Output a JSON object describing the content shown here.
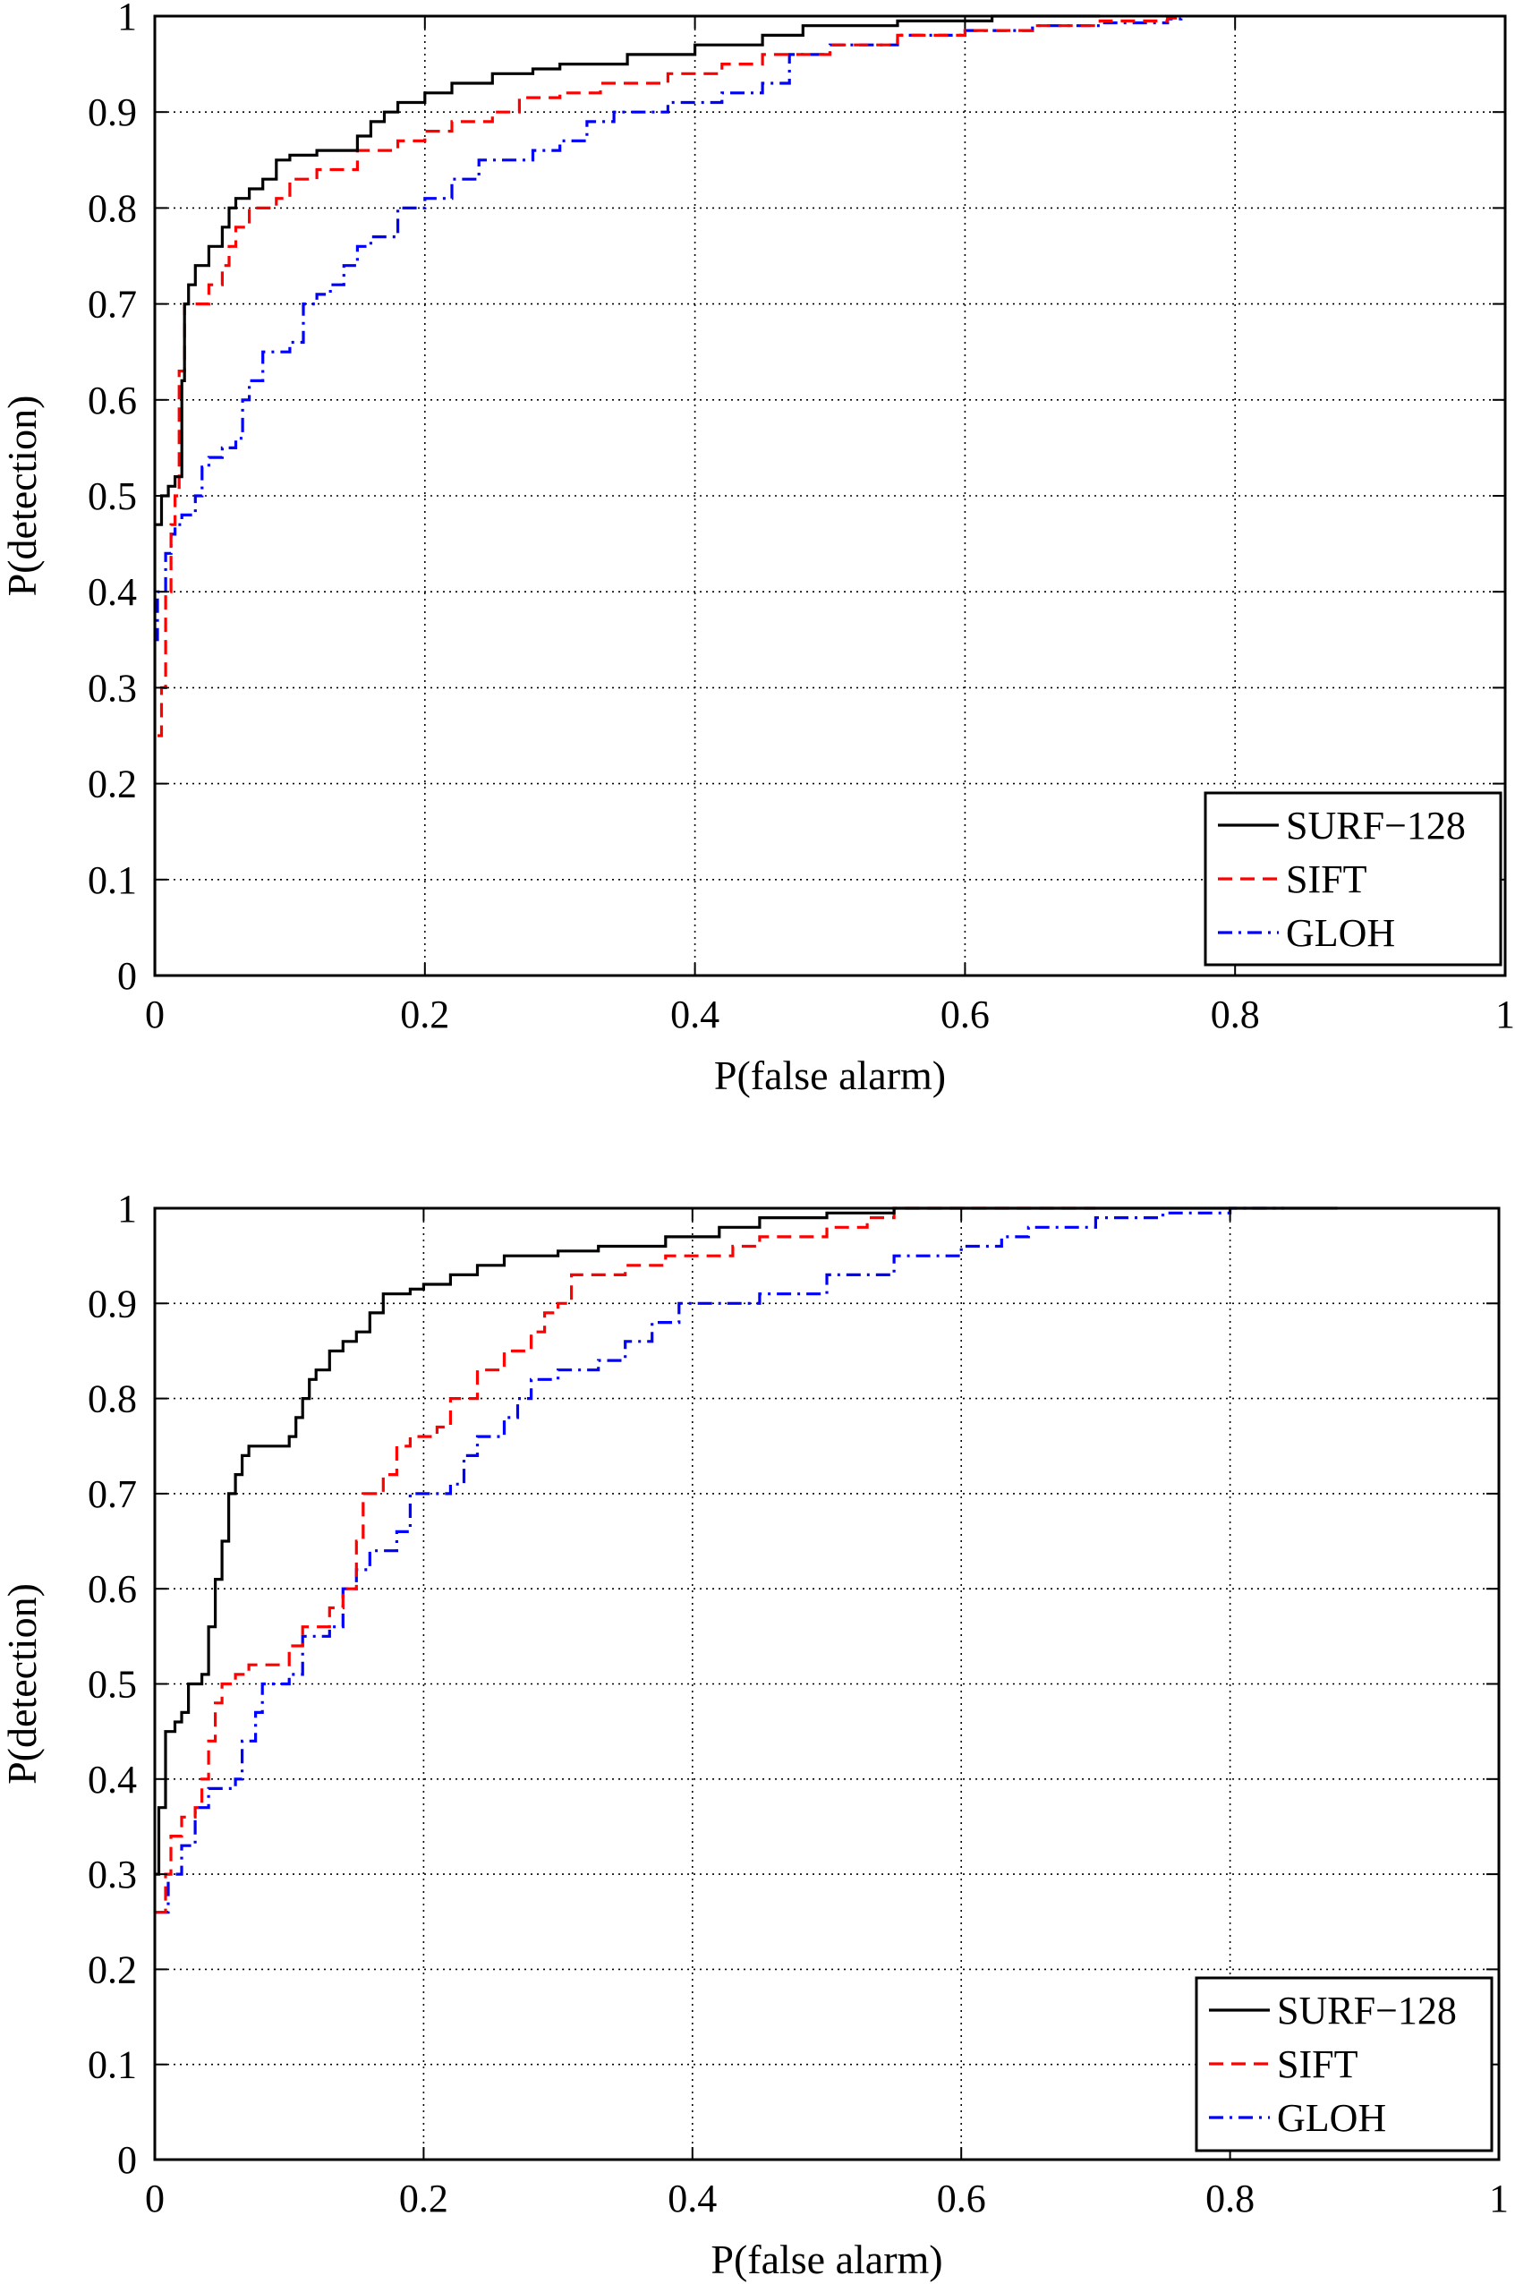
{
  "chart_data": [
    {
      "type": "line",
      "title": "",
      "xlabel": "P(false alarm)",
      "ylabel": "P(detection)",
      "xlim": [
        0,
        1
      ],
      "ylim": [
        0,
        1
      ],
      "x_ticks": [
        0,
        0.2,
        0.4,
        0.6,
        0.8,
        1
      ],
      "y_ticks": [
        0,
        0.1,
        0.2,
        0.3,
        0.4,
        0.5,
        0.6,
        0.7,
        0.8,
        0.9,
        1
      ],
      "x_tick_labels": [
        "0",
        "0.2",
        "0.4",
        "0.6",
        "0.8",
        "1"
      ],
      "y_tick_labels": [
        "0",
        "0.1",
        "0.2",
        "0.3",
        "0.4",
        "0.5",
        "0.6",
        "0.7",
        "0.8",
        "0.9",
        "1"
      ],
      "grid": true,
      "legend_position": "bottom-right",
      "series": [
        {
          "name": "SURF−128",
          "color": "#000000",
          "dash": "solid",
          "points": [
            [
              0,
              0
            ],
            [
              0,
              0.47
            ],
            [
              0.005,
              0.5
            ],
            [
              0.01,
              0.51
            ],
            [
              0.015,
              0.52
            ],
            [
              0.02,
              0.62
            ],
            [
              0.022,
              0.7
            ],
            [
              0.025,
              0.72
            ],
            [
              0.03,
              0.74
            ],
            [
              0.04,
              0.76
            ],
            [
              0.05,
              0.78
            ],
            [
              0.055,
              0.8
            ],
            [
              0.06,
              0.81
            ],
            [
              0.07,
              0.82
            ],
            [
              0.08,
              0.83
            ],
            [
              0.09,
              0.85
            ],
            [
              0.1,
              0.855
            ],
            [
              0.12,
              0.86
            ],
            [
              0.15,
              0.875
            ],
            [
              0.16,
              0.89
            ],
            [
              0.17,
              0.9
            ],
            [
              0.18,
              0.91
            ],
            [
              0.2,
              0.92
            ],
            [
              0.22,
              0.93
            ],
            [
              0.25,
              0.94
            ],
            [
              0.28,
              0.945
            ],
            [
              0.3,
              0.95
            ],
            [
              0.35,
              0.96
            ],
            [
              0.4,
              0.97
            ],
            [
              0.45,
              0.98
            ],
            [
              0.48,
              0.99
            ],
            [
              0.55,
              0.995
            ],
            [
              0.6,
              0.995
            ],
            [
              0.62,
              1
            ],
            [
              0.7,
              1
            ]
          ]
        },
        {
          "name": "SIFT",
          "color": "#ff0000",
          "dash": "dashed",
          "points": [
            [
              0.002,
              0.25
            ],
            [
              0.005,
              0.3
            ],
            [
              0.008,
              0.4
            ],
            [
              0.012,
              0.47
            ],
            [
              0.015,
              0.5
            ],
            [
              0.018,
              0.63
            ],
            [
              0.022,
              0.7
            ],
            [
              0.03,
              0.7
            ],
            [
              0.04,
              0.72
            ],
            [
              0.05,
              0.74
            ],
            [
              0.055,
              0.76
            ],
            [
              0.06,
              0.78
            ],
            [
              0.07,
              0.8
            ],
            [
              0.09,
              0.81
            ],
            [
              0.1,
              0.83
            ],
            [
              0.12,
              0.84
            ],
            [
              0.15,
              0.86
            ],
            [
              0.18,
              0.87
            ],
            [
              0.2,
              0.88
            ],
            [
              0.22,
              0.89
            ],
            [
              0.25,
              0.9
            ],
            [
              0.27,
              0.915
            ],
            [
              0.3,
              0.92
            ],
            [
              0.33,
              0.93
            ],
            [
              0.38,
              0.94
            ],
            [
              0.42,
              0.95
            ],
            [
              0.45,
              0.96
            ],
            [
              0.5,
              0.97
            ],
            [
              0.55,
              0.98
            ],
            [
              0.6,
              0.985
            ],
            [
              0.65,
              0.99
            ],
            [
              0.7,
              0.995
            ],
            [
              0.75,
              0.998
            ],
            [
              0.76,
              1
            ]
          ]
        },
        {
          "name": "GLOH",
          "color": "#0000ff",
          "dash": "dashdot",
          "points": [
            [
              0,
              0.35
            ],
            [
              0.002,
              0.4
            ],
            [
              0.008,
              0.44
            ],
            [
              0.012,
              0.46
            ],
            [
              0.015,
              0.47
            ],
            [
              0.02,
              0.48
            ],
            [
              0.03,
              0.5
            ],
            [
              0.035,
              0.53
            ],
            [
              0.04,
              0.54
            ],
            [
              0.05,
              0.55
            ],
            [
              0.06,
              0.56
            ],
            [
              0.065,
              0.6
            ],
            [
              0.07,
              0.62
            ],
            [
              0.08,
              0.65
            ],
            [
              0.1,
              0.66
            ],
            [
              0.11,
              0.7
            ],
            [
              0.12,
              0.71
            ],
            [
              0.13,
              0.72
            ],
            [
              0.14,
              0.74
            ],
            [
              0.15,
              0.76
            ],
            [
              0.16,
              0.77
            ],
            [
              0.18,
              0.8
            ],
            [
              0.2,
              0.81
            ],
            [
              0.22,
              0.83
            ],
            [
              0.24,
              0.85
            ],
            [
              0.28,
              0.86
            ],
            [
              0.3,
              0.87
            ],
            [
              0.32,
              0.89
            ],
            [
              0.34,
              0.9
            ],
            [
              0.38,
              0.91
            ],
            [
              0.42,
              0.92
            ],
            [
              0.45,
              0.93
            ],
            [
              0.47,
              0.96
            ],
            [
              0.5,
              0.97
            ],
            [
              0.55,
              0.98
            ],
            [
              0.6,
              0.985
            ],
            [
              0.65,
              0.99
            ],
            [
              0.7,
              0.993
            ],
            [
              0.75,
              0.997
            ],
            [
              0.76,
              1
            ]
          ]
        }
      ]
    },
    {
      "type": "line",
      "title": "",
      "xlabel": "P(false alarm)",
      "ylabel": "P(detection)",
      "xlim": [
        0,
        1
      ],
      "ylim": [
        0,
        1
      ],
      "x_ticks": [
        0,
        0.2,
        0.4,
        0.6,
        0.8,
        1
      ],
      "y_ticks": [
        0,
        0.1,
        0.2,
        0.3,
        0.4,
        0.5,
        0.6,
        0.7,
        0.8,
        0.9,
        1
      ],
      "x_tick_labels": [
        "0",
        "0.2",
        "0.4",
        "0.6",
        "0.8",
        "1"
      ],
      "y_tick_labels": [
        "0",
        "0.1",
        "0.2",
        "0.3",
        "0.4",
        "0.5",
        "0.6",
        "0.7",
        "0.8",
        "0.9",
        "1"
      ],
      "grid": true,
      "legend_position": "bottom-right",
      "series": [
        {
          "name": "SURF−128",
          "color": "#000000",
          "dash": "solid",
          "points": [
            [
              0,
              0.3
            ],
            [
              0.003,
              0.37
            ],
            [
              0.008,
              0.45
            ],
            [
              0.015,
              0.46
            ],
            [
              0.02,
              0.47
            ],
            [
              0.025,
              0.5
            ],
            [
              0.035,
              0.51
            ],
            [
              0.04,
              0.56
            ],
            [
              0.045,
              0.61
            ],
            [
              0.05,
              0.65
            ],
            [
              0.055,
              0.7
            ],
            [
              0.06,
              0.72
            ],
            [
              0.065,
              0.74
            ],
            [
              0.07,
              0.75
            ],
            [
              0.1,
              0.76
            ],
            [
              0.105,
              0.78
            ],
            [
              0.11,
              0.8
            ],
            [
              0.115,
              0.82
            ],
            [
              0.12,
              0.83
            ],
            [
              0.13,
              0.85
            ],
            [
              0.14,
              0.86
            ],
            [
              0.15,
              0.87
            ],
            [
              0.16,
              0.89
            ],
            [
              0.17,
              0.91
            ],
            [
              0.19,
              0.915
            ],
            [
              0.2,
              0.92
            ],
            [
              0.22,
              0.93
            ],
            [
              0.24,
              0.94
            ],
            [
              0.26,
              0.95
            ],
            [
              0.3,
              0.955
            ],
            [
              0.33,
              0.96
            ],
            [
              0.38,
              0.97
            ],
            [
              0.42,
              0.98
            ],
            [
              0.45,
              0.99
            ],
            [
              0.5,
              0.995
            ],
            [
              0.55,
              1
            ],
            [
              0.88,
              1
            ]
          ]
        },
        {
          "name": "SIFT",
          "color": "#ff0000",
          "dash": "dashed",
          "points": [
            [
              0,
              0.26
            ],
            [
              0.008,
              0.3
            ],
            [
              0.012,
              0.34
            ],
            [
              0.02,
              0.36
            ],
            [
              0.03,
              0.37
            ],
            [
              0.035,
              0.4
            ],
            [
              0.04,
              0.44
            ],
            [
              0.045,
              0.48
            ],
            [
              0.05,
              0.5
            ],
            [
              0.06,
              0.51
            ],
            [
              0.07,
              0.52
            ],
            [
              0.1,
              0.54
            ],
            [
              0.11,
              0.56
            ],
            [
              0.13,
              0.58
            ],
            [
              0.14,
              0.6
            ],
            [
              0.15,
              0.65
            ],
            [
              0.155,
              0.7
            ],
            [
              0.17,
              0.72
            ],
            [
              0.18,
              0.75
            ],
            [
              0.19,
              0.76
            ],
            [
              0.21,
              0.77
            ],
            [
              0.22,
              0.8
            ],
            [
              0.24,
              0.83
            ],
            [
              0.26,
              0.85
            ],
            [
              0.28,
              0.87
            ],
            [
              0.29,
              0.89
            ],
            [
              0.3,
              0.9
            ],
            [
              0.31,
              0.93
            ],
            [
              0.35,
              0.94
            ],
            [
              0.38,
              0.95
            ],
            [
              0.43,
              0.96
            ],
            [
              0.45,
              0.97
            ],
            [
              0.5,
              0.98
            ],
            [
              0.53,
              0.99
            ],
            [
              0.55,
              1
            ],
            [
              0.7,
              1
            ]
          ]
        },
        {
          "name": "GLOH",
          "color": "#0000ff",
          "dash": "dashdot",
          "points": [
            [
              0,
              0.26
            ],
            [
              0.01,
              0.3
            ],
            [
              0.02,
              0.33
            ],
            [
              0.03,
              0.37
            ],
            [
              0.04,
              0.39
            ],
            [
              0.06,
              0.4
            ],
            [
              0.065,
              0.44
            ],
            [
              0.075,
              0.47
            ],
            [
              0.08,
              0.5
            ],
            [
              0.1,
              0.51
            ],
            [
              0.11,
              0.55
            ],
            [
              0.13,
              0.56
            ],
            [
              0.14,
              0.6
            ],
            [
              0.15,
              0.62
            ],
            [
              0.16,
              0.64
            ],
            [
              0.18,
              0.66
            ],
            [
              0.19,
              0.7
            ],
            [
              0.22,
              0.71
            ],
            [
              0.23,
              0.74
            ],
            [
              0.24,
              0.76
            ],
            [
              0.26,
              0.78
            ],
            [
              0.27,
              0.8
            ],
            [
              0.28,
              0.82
            ],
            [
              0.3,
              0.83
            ],
            [
              0.33,
              0.84
            ],
            [
              0.35,
              0.86
            ],
            [
              0.37,
              0.88
            ],
            [
              0.39,
              0.9
            ],
            [
              0.42,
              0.9
            ],
            [
              0.45,
              0.91
            ],
            [
              0.5,
              0.93
            ],
            [
              0.55,
              0.95
            ],
            [
              0.6,
              0.96
            ],
            [
              0.63,
              0.97
            ],
            [
              0.65,
              0.98
            ],
            [
              0.7,
              0.99
            ],
            [
              0.75,
              0.995
            ],
            [
              0.8,
              1
            ],
            [
              0.84,
              1
            ]
          ]
        }
      ]
    }
  ]
}
